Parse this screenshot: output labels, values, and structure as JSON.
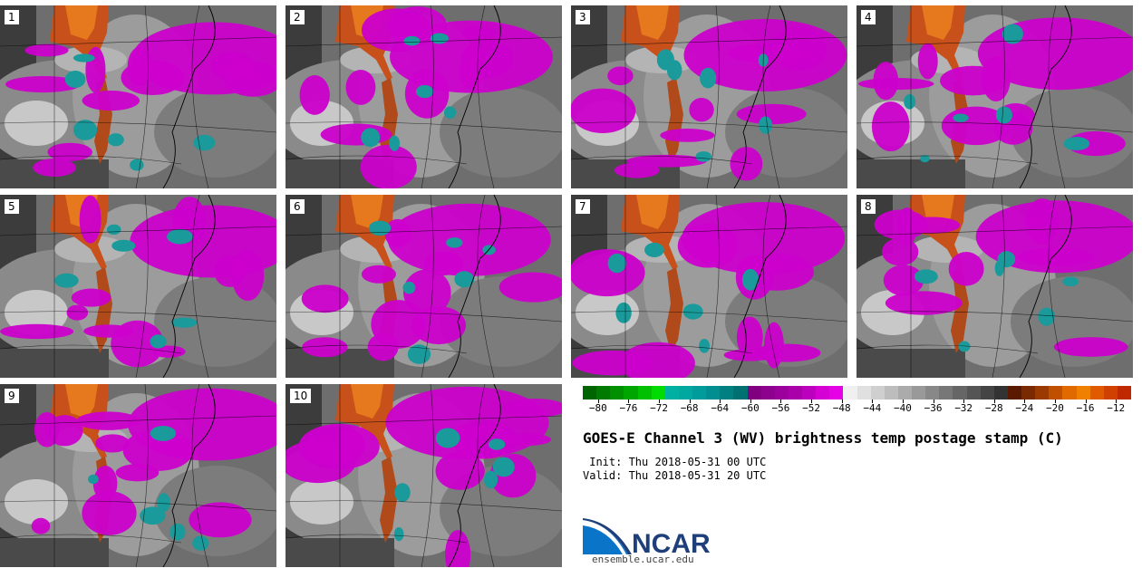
{
  "panels": [
    {
      "label": "1"
    },
    {
      "label": "2"
    },
    {
      "label": "3"
    },
    {
      "label": "4"
    },
    {
      "label": "5"
    },
    {
      "label": "6"
    },
    {
      "label": "7"
    },
    {
      "label": "8"
    },
    {
      "label": "9"
    },
    {
      "label": "10"
    }
  ],
  "colorbar": {
    "colors": [
      "#006400",
      "#007a00",
      "#009000",
      "#00a600",
      "#00c000",
      "#00dc00",
      "#00b0a0",
      "#00a8a0",
      "#009c9c",
      "#008e90",
      "#008080",
      "#007070",
      "#800080",
      "#8e008e",
      "#9c009c",
      "#aa00aa",
      "#bd00bd",
      "#d400d4",
      "#e600e6",
      "#f0f0f0",
      "#e0e0e0",
      "#cfcfcf",
      "#bdbdbd",
      "#ababab",
      "#999999",
      "#888888",
      "#777777",
      "#666666",
      "#555555",
      "#444444",
      "#333333",
      "#5a1a00",
      "#7a2a00",
      "#9a3a00",
      "#c05000",
      "#e06a00",
      "#f08000",
      "#e05a00",
      "#d04000",
      "#c02800"
    ],
    "ticks": [
      "−80",
      "−76",
      "−72",
      "−68",
      "−64",
      "−60",
      "−56",
      "−52",
      "−48",
      "−44",
      "−40",
      "−36",
      "−32",
      "−28",
      "−24",
      "−20",
      "−16",
      "−12"
    ],
    "range": [
      -82,
      -10
    ]
  },
  "title": "GOES-E Channel 3 (WV) brightness temp postage stamp (C)",
  "init": " Init: Thu 2018-05-31 00 UTC",
  "valid": "Valid: Thu 2018-05-31 20 UTC",
  "logo_text": "NCAR",
  "logo_url": "ensemble.ucar.edu"
}
